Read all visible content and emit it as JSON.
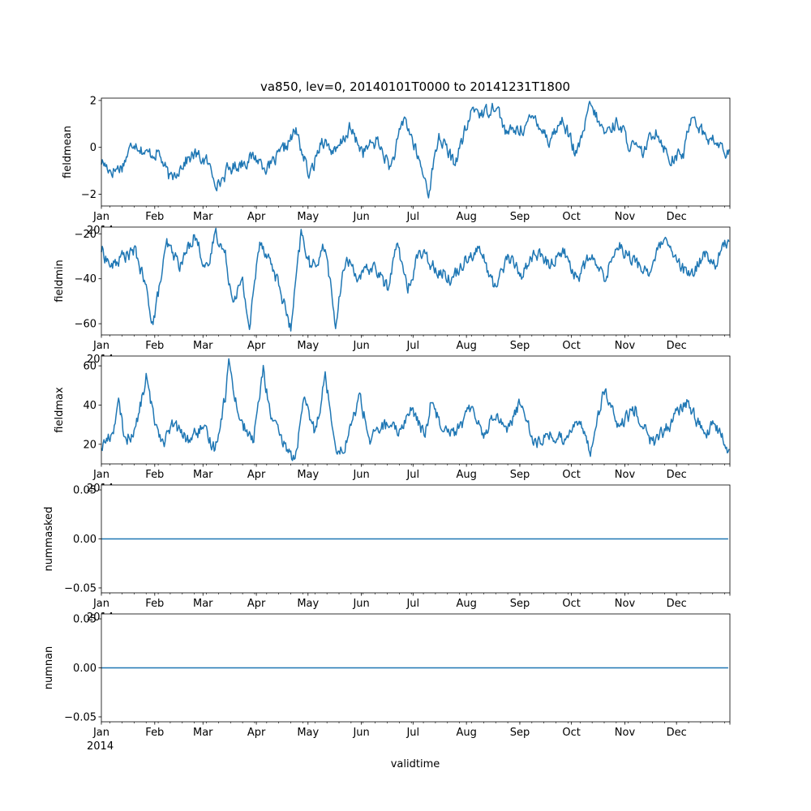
{
  "chart_data": {
    "title": "va850, lev=0, 20140101T0000 to 20141231T1800",
    "xlabel": "validtime",
    "x_range": [
      "2014-01-01",
      "2015-01-01"
    ],
    "month_ticks": [
      "Jan",
      "Feb",
      "Mar",
      "Apr",
      "May",
      "Jun",
      "Jul",
      "Aug",
      "Sep",
      "Oct",
      "Nov",
      "Dec"
    ],
    "year_label": "2014",
    "panels": [
      {
        "type": "line",
        "ylabel": "fieldmean",
        "ylim": [
          -2.5,
          2.1
        ],
        "yticks": [
          2,
          0,
          -2
        ],
        "yticklabels": [
          "2",
          "0",
          "−2"
        ],
        "color": "#1f77b4",
        "x_days": [
          0,
          6,
          12,
          19,
          26,
          33,
          40,
          47,
          54,
          61,
          68,
          73,
          80,
          89,
          97,
          105,
          113,
          121,
          128,
          136,
          144,
          152,
          160,
          168,
          176,
          182,
          190,
          196,
          205,
          212,
          216,
          222,
          229,
          235,
          244,
          252,
          260,
          268,
          276,
          284,
          292,
          300,
          306,
          314,
          322,
          330,
          338,
          343,
          350,
          357,
          364
        ],
        "values": [
          -0.6,
          -1.0,
          -0.8,
          0.3,
          -0.3,
          -0.2,
          -1.4,
          -0.7,
          -0.3,
          -0.6,
          -1.6,
          -1.0,
          -0.7,
          -0.4,
          -0.9,
          -0.2,
          0.7,
          -1.3,
          0.4,
          -0.3,
          0.8,
          -0.2,
          0.3,
          -0.9,
          1.3,
          0.0,
          -1.9,
          0.5,
          -0.7,
          0.8,
          1.7,
          1.4,
          1.9,
          0.6,
          0.8,
          1.3,
          0.3,
          1.2,
          -0.4,
          1.8,
          0.6,
          1.1,
          0.2,
          -0.3,
          0.8,
          -0.5,
          -0.3,
          1.5,
          0.5,
          0.2,
          -0.3
        ]
      },
      {
        "type": "line",
        "ylabel": "fieldmin",
        "ylim": [
          -65,
          -17
        ],
        "yticks": [
          -20,
          -40,
          -60
        ],
        "yticklabels": [
          "−20",
          "−40",
          "−60"
        ],
        "color": "#1f77b4",
        "x_days": [
          0,
          6,
          12,
          20,
          26,
          30,
          38,
          46,
          54,
          62,
          66,
          72,
          76,
          82,
          86,
          92,
          98,
          104,
          110,
          116,
          122,
          130,
          136,
          142,
          150,
          158,
          166,
          172,
          178,
          184,
          190,
          196,
          204,
          212,
          220,
          228,
          236,
          244,
          252,
          260,
          268,
          276,
          284,
          292,
          300,
          310,
          318,
          326,
          334,
          342,
          350,
          356,
          364
        ],
        "values": [
          -27,
          -35,
          -30,
          -28,
          -45,
          -60,
          -25,
          -34,
          -20,
          -38,
          -18,
          -30,
          -48,
          -42,
          -62,
          -22,
          -32,
          -45,
          -63,
          -20,
          -36,
          -25,
          -61,
          -30,
          -40,
          -34,
          -44,
          -24,
          -46,
          -28,
          -32,
          -36,
          -40,
          -30,
          -27,
          -44,
          -30,
          -38,
          -28,
          -34,
          -27,
          -40,
          -30,
          -40,
          -24,
          -33,
          -37,
          -23,
          -32,
          -40,
          -28,
          -34,
          -22
        ]
      },
      {
        "type": "line",
        "ylabel": "fieldmax",
        "ylim": [
          10,
          65
        ],
        "yticks": [
          60,
          40,
          20
        ],
        "yticklabels": [
          "60",
          "40",
          "20"
        ],
        "color": "#1f77b4",
        "x_days": [
          0,
          6,
          10,
          14,
          20,
          26,
          30,
          36,
          42,
          50,
          58,
          66,
          72,
          74,
          80,
          84,
          88,
          94,
          98,
          104,
          108,
          112,
          118,
          124,
          130,
          136,
          140,
          146,
          150,
          156,
          164,
          172,
          180,
          188,
          192,
          196,
          206,
          216,
          222,
          228,
          236,
          244,
          252,
          260,
          268,
          276,
          284,
          292,
          300,
          310,
          320,
          330,
          340,
          350,
          356,
          364
        ],
        "values": [
          19,
          25,
          40,
          22,
          28,
          54,
          35,
          21,
          30,
          22,
          28,
          18,
          45,
          62,
          34,
          27,
          21,
          58,
          36,
          22,
          18,
          12,
          42,
          26,
          55,
          20,
          16,
          32,
          45,
          22,
          30,
          26,
          38,
          24,
          44,
          32,
          26,
          40,
          24,
          36,
          28,
          42,
          20,
          25,
          22,
          33,
          18,
          48,
          28,
          38,
          20,
          30,
          42,
          25,
          30,
          17
        ]
      },
      {
        "type": "line",
        "ylabel": "nummasked",
        "ylim": [
          -0.055,
          0.055
        ],
        "yticks": [
          0.05,
          0.0,
          -0.05
        ],
        "yticklabels": [
          "0.05",
          "0.00",
          "−0.05"
        ],
        "color": "#1f77b4",
        "x_days": [
          0,
          364
        ],
        "values": [
          0,
          0
        ]
      },
      {
        "type": "line",
        "ylabel": "numnan",
        "ylim": [
          -0.055,
          0.055
        ],
        "yticks": [
          0.05,
          0.0,
          -0.05
        ],
        "yticklabels": [
          "0.05",
          "0.00",
          "−0.05"
        ],
        "color": "#1f77b4",
        "x_days": [
          0,
          364
        ],
        "values": [
          0,
          0
        ]
      }
    ]
  }
}
